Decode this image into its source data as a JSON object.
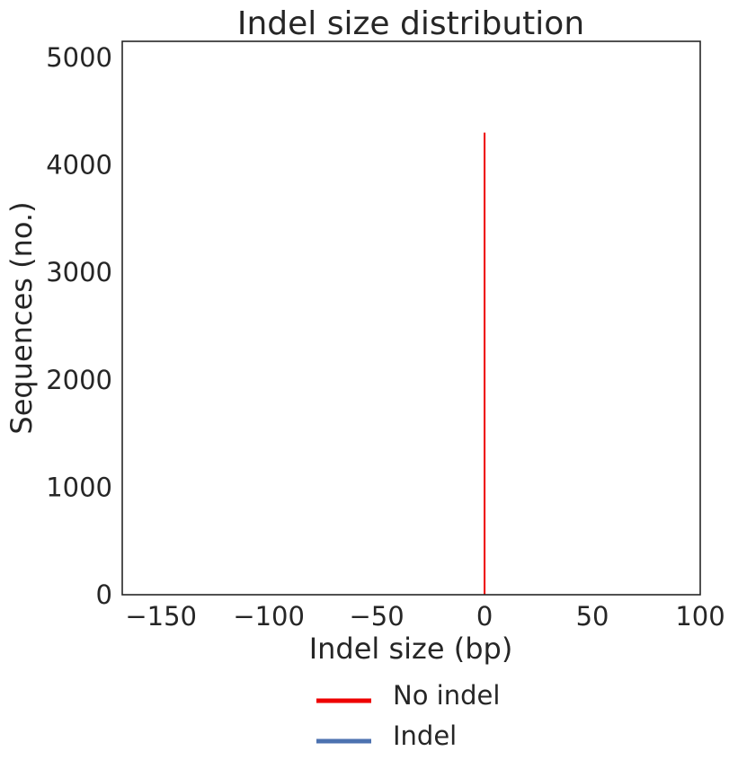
{
  "chart_data": {
    "type": "bar",
    "title": "Indel size distribution",
    "xlabel": "Indel size (bp)",
    "ylabel": "Sequences (no.)",
    "xlim": [
      -168,
      100
    ],
    "ylim": [
      0,
      5150
    ],
    "xticks": [
      -150,
      -100,
      -50,
      0,
      50,
      100
    ],
    "yticks": [
      0,
      1000,
      2000,
      3000,
      4000,
      5000
    ],
    "xtick_labels": [
      "−150",
      "−100",
      "−50",
      "0",
      "50",
      "100"
    ],
    "ytick_labels": [
      "0",
      "1000",
      "2000",
      "3000",
      "4000",
      "5000"
    ],
    "grid": false,
    "legend_position": "below-center",
    "series": [
      {
        "name": "No indel",
        "color": "#ee0000",
        "bars": [
          {
            "x": 0,
            "y": 4300
          }
        ]
      },
      {
        "name": "Indel",
        "color": "#4c72b0",
        "bars": []
      }
    ]
  }
}
